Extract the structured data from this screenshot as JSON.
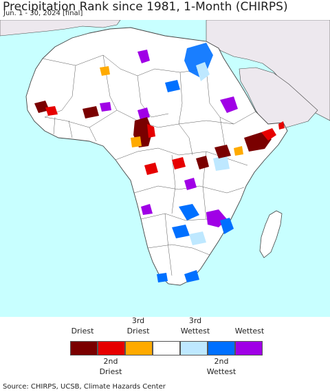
{
  "title": "Precipitation Rank since 1981, 1-Month (CHIRPS)",
  "subtitle": "Jun. 1 - 30, 2024 [final]",
  "legend": {
    "top_labels": [
      "Driest",
      "3rd\nDriest",
      "3rd\nWettest",
      "Wettest"
    ],
    "bottom_labels": [
      "2nd\nDriest",
      "2nd\nWettest"
    ],
    "colors": [
      "#7a0000",
      "#e60000",
      "#ffaa00",
      "#ffffff",
      "#bee8ff",
      "#0070ff",
      "#a000e6"
    ]
  },
  "source": "Source: CHIRPS, UCSB, Climate Hazards Center",
  "map_colors": {
    "ocean": "#c8ffff",
    "land": "#ffffff",
    "no_data": "#ede8ee",
    "border": "#444444"
  }
}
